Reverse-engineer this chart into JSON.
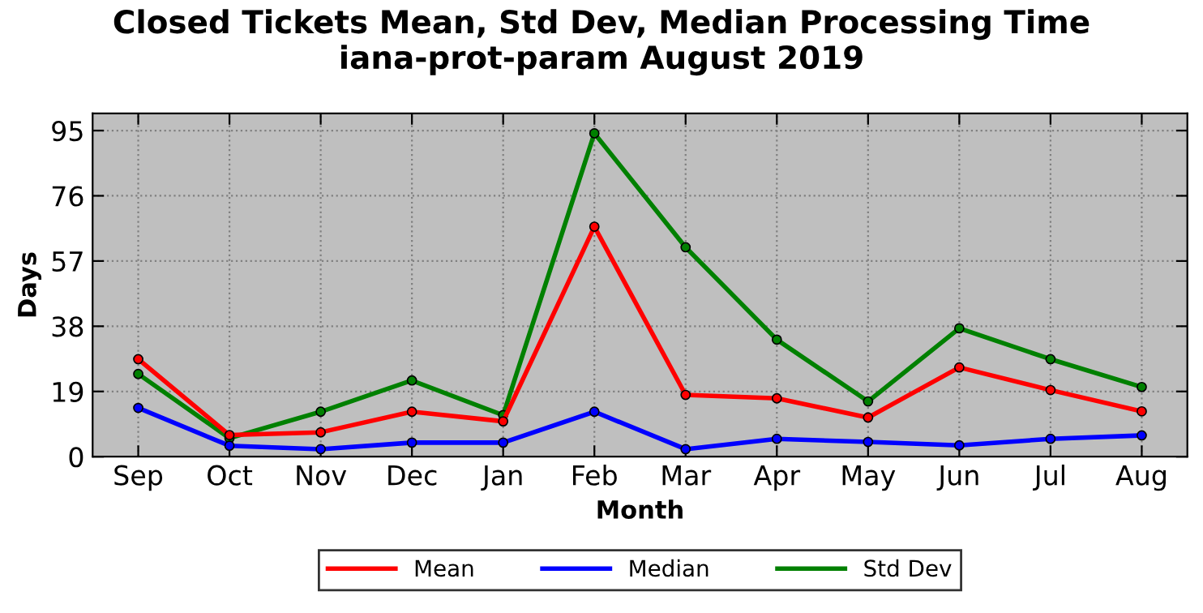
{
  "chart_data": {
    "type": "line",
    "title": "Closed Tickets Mean, Std Dev, Median Processing Time\niana-prot-param August 2019",
    "xlabel": "Month",
    "ylabel": "Days",
    "categories": [
      "Sep",
      "Oct",
      "Nov",
      "Dec",
      "Jan",
      "Feb",
      "Mar",
      "Apr",
      "May",
      "Jun",
      "Jul",
      "Aug"
    ],
    "series": [
      {
        "name": "Mean",
        "color": "#ff0000",
        "values": [
          28.4,
          6.3,
          7.1,
          13.1,
          10.3,
          67,
          18,
          17,
          11.4,
          26,
          19.4,
          13.2
        ]
      },
      {
        "name": "Median",
        "color": "#0000ff",
        "values": [
          14.2,
          3.2,
          2.2,
          4.1,
          4.1,
          13.1,
          2.2,
          5.2,
          4.3,
          3.3,
          5.2,
          6.2
        ]
      },
      {
        "name": "Std Dev",
        "color": "#008000",
        "values": [
          24.1,
          5.4,
          13.1,
          22.2,
          12.1,
          94.2,
          61,
          34.1,
          16.1,
          37.4,
          28.4,
          20.3
        ]
      }
    ],
    "ylim": [
      0,
      100
    ],
    "yticks": [
      0,
      19,
      38,
      57,
      76,
      95
    ],
    "grid": true,
    "legend": "bottom",
    "marker": "circle",
    "line_style": "solid"
  }
}
